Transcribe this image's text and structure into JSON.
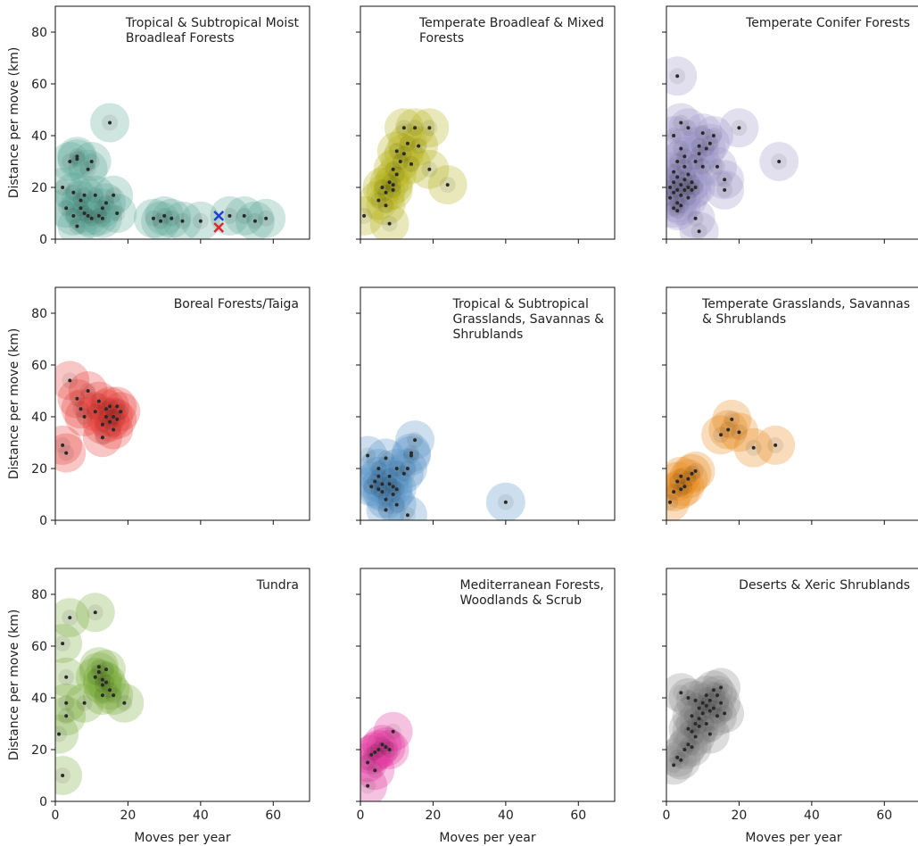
{
  "chart_data": [
    {
      "type": "scatter",
      "title": "Tropical & Subtropical Moist\nBroadleaf Forests",
      "ylabel": "Distance per move (km)",
      "color": "#5fa898",
      "x": [
        2,
        4,
        6,
        6,
        5,
        7,
        8,
        9,
        10,
        11,
        13,
        14,
        8,
        9,
        10,
        12,
        13,
        6,
        15,
        16,
        17,
        27,
        29,
        30,
        32,
        35,
        40,
        48,
        52,
        55,
        58,
        3,
        5,
        7
      ],
      "values": [
        20,
        30,
        32,
        31,
        18,
        15,
        17,
        27,
        30,
        17,
        12,
        14,
        10,
        9,
        8,
        9,
        8,
        5,
        45,
        17,
        10,
        8,
        7,
        9,
        8,
        7,
        7,
        9,
        9,
        7,
        8,
        12,
        9,
        12
      ],
      "markers": [
        {
          "x": 45,
          "y": 9,
          "color": "#1f3fd6"
        },
        {
          "x": 45,
          "y": 4.5,
          "color": "#e0262b"
        }
      ],
      "xlim": [
        0,
        70
      ],
      "ylim": [
        0,
        90
      ],
      "xticks": [
        0,
        20,
        40,
        60
      ],
      "yticks": [
        0,
        20,
        40,
        60,
        80
      ]
    },
    {
      "type": "scatter",
      "title": "Temperate Broadleaf & Mixed\nForests",
      "color": "#b5b319",
      "x": [
        1,
        5,
        6,
        7,
        8,
        9,
        9,
        10,
        10,
        11,
        12,
        12,
        13,
        14,
        15,
        16,
        19,
        19,
        24,
        7,
        8,
        9
      ],
      "values": [
        9,
        15,
        20,
        18,
        22,
        21,
        27,
        25,
        34,
        30,
        33,
        43,
        37,
        29,
        43,
        36,
        43,
        27,
        21,
        13,
        6,
        19
      ],
      "xlim": [
        0,
        70
      ],
      "ylim": [
        0,
        90
      ],
      "xticks": [
        0,
        20,
        40,
        60
      ],
      "yticks": [
        0,
        20,
        40,
        60,
        80
      ]
    },
    {
      "type": "scatter",
      "title": "Temperate Conifer Forests",
      "color": "#9f97c9",
      "x": [
        3,
        1,
        1,
        2,
        2,
        2,
        2,
        3,
        3,
        3,
        3,
        4,
        4,
        4,
        5,
        5,
        5,
        6,
        6,
        6,
        7,
        7,
        8,
        2,
        4,
        4,
        6,
        8,
        9,
        9,
        10,
        10,
        11,
        12,
        13,
        14,
        16,
        16,
        20,
        31,
        8,
        9,
        3,
        5
      ],
      "values": [
        63,
        16,
        20,
        12,
        18,
        22,
        26,
        14,
        19,
        24,
        30,
        17,
        21,
        13,
        19,
        23,
        28,
        20,
        25,
        16,
        22,
        19,
        20,
        40,
        35,
        45,
        43,
        30,
        33,
        36,
        41,
        28,
        35,
        37,
        40,
        28,
        19,
        23,
        43,
        30,
        8,
        3,
        11,
        32
      ],
      "xlim": [
        0,
        70
      ],
      "ylim": [
        0,
        90
      ],
      "xticks": [
        0,
        20,
        40,
        60
      ],
      "yticks": [
        0,
        20,
        40,
        60,
        80
      ]
    },
    {
      "type": "scatter",
      "title": "Boreal Forests/Taiga",
      "ylabel": "Distance per move (km)",
      "color": "#e8413a",
      "x": [
        2,
        3,
        4,
        6,
        7,
        8,
        9,
        11,
        12,
        13,
        13,
        14,
        14,
        15,
        15,
        16,
        17,
        17,
        18,
        16
      ],
      "values": [
        29,
        26,
        54,
        47,
        43,
        40,
        50,
        42,
        46,
        37,
        32,
        40,
        43,
        38,
        44,
        40,
        39,
        44,
        42,
        35
      ],
      "xlim": [
        0,
        70
      ],
      "ylim": [
        0,
        90
      ],
      "xticks": [
        0,
        20,
        40,
        60
      ],
      "yticks": [
        0,
        20,
        40,
        60,
        80
      ]
    },
    {
      "type": "scatter",
      "title": "Tropical & Subtropical\nGrasslands, Savannas &\nShrublands",
      "color": "#5b96c8",
      "x": [
        2,
        3,
        4,
        5,
        5,
        5,
        6,
        6,
        7,
        7,
        7,
        8,
        8,
        9,
        9,
        10,
        10,
        10,
        12,
        13,
        13,
        14,
        14,
        15,
        40
      ],
      "values": [
        25,
        13,
        15,
        12,
        17,
        20,
        11,
        14,
        8,
        4,
        24,
        14,
        17,
        10,
        13,
        6,
        12,
        20,
        18,
        20,
        2,
        26,
        25,
        31,
        7
      ],
      "xlim": [
        0,
        70
      ],
      "ylim": [
        0,
        90
      ],
      "xticks": [
        0,
        20,
        40,
        60
      ],
      "yticks": [
        0,
        20,
        40,
        60,
        80
      ]
    },
    {
      "type": "scatter",
      "title": "Temperate Grasslands, Savannas\n& Shrublands",
      "color": "#e88a1d",
      "x": [
        1,
        2,
        3,
        4,
        5,
        6,
        7,
        8,
        15,
        17,
        18,
        20,
        24,
        30,
        4
      ],
      "values": [
        7,
        11,
        15,
        17,
        13,
        16,
        18,
        19,
        33,
        35,
        39,
        34,
        28,
        29,
        12
      ],
      "xlim": [
        0,
        70
      ],
      "ylim": [
        0,
        90
      ],
      "xticks": [
        0,
        20,
        40,
        60
      ],
      "yticks": [
        0,
        20,
        40,
        60,
        80
      ]
    },
    {
      "type": "scatter",
      "title": "Tundra",
      "ylabel": "Distance per move (km)",
      "xlabel": "Moves per year",
      "color": "#7aab3c",
      "x": [
        1,
        2,
        2,
        3,
        3,
        3,
        4,
        8,
        11,
        11,
        12,
        12,
        13,
        13,
        14,
        14,
        15,
        16,
        19,
        13
      ],
      "values": [
        26,
        61,
        10,
        33,
        38,
        48,
        71,
        38,
        73,
        48,
        52,
        50,
        45,
        41,
        51,
        46,
        43,
        41,
        38,
        47
      ],
      "xlim": [
        0,
        70
      ],
      "ylim": [
        0,
        90
      ],
      "xticks": [
        0,
        20,
        40,
        60
      ],
      "yticks": [
        0,
        20,
        40,
        60,
        80
      ]
    },
    {
      "type": "scatter",
      "title": "Mediterranean Forests,\nWoodlands & Scrub",
      "xlabel": "Moves per year",
      "color": "#e0359a",
      "x": [
        2,
        2,
        3,
        4,
        5,
        6,
        7,
        8,
        9,
        4
      ],
      "values": [
        6,
        15,
        18,
        19,
        20,
        22,
        21,
        20,
        27,
        12
      ],
      "xlim": [
        0,
        70
      ],
      "ylim": [
        0,
        90
      ],
      "xticks": [
        0,
        20,
        40,
        60
      ],
      "yticks": [
        0,
        20,
        40,
        60,
        80
      ]
    },
    {
      "type": "scatter",
      "title": "Deserts & Xeric Shrublands",
      "xlabel": "Moves per year",
      "color": "#8c8c8c",
      "x": [
        2,
        3,
        4,
        4,
        6,
        6,
        6,
        7,
        7,
        8,
        8,
        9,
        9,
        9,
        10,
        10,
        11,
        11,
        11,
        12,
        12,
        12,
        13,
        13,
        14,
        14,
        15,
        15,
        16,
        7,
        8,
        5
      ],
      "values": [
        14,
        17,
        16,
        42,
        22,
        40,
        28,
        27,
        33,
        30,
        25,
        36,
        32,
        29,
        38,
        34,
        41,
        37,
        30,
        35,
        39,
        26,
        43,
        36,
        41,
        33,
        44,
        38,
        34,
        21,
        39,
        20
      ],
      "xlim": [
        0,
        70
      ],
      "ylim": [
        0,
        90
      ],
      "xticks": [
        0,
        20,
        40,
        60
      ],
      "yticks": [
        0,
        20,
        40,
        60,
        80
      ]
    }
  ]
}
